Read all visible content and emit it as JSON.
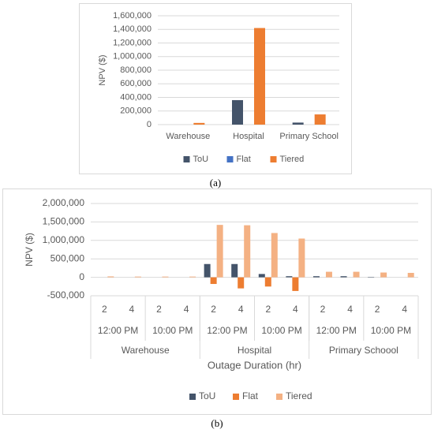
{
  "chart_data": [
    {
      "type": "bar",
      "label": "(a)",
      "y_label": "NPV ($)",
      "categories": [
        "Warehouse",
        "Hospital",
        "Primary School"
      ],
      "series": [
        {
          "name": "ToU",
          "color": "#44546a",
          "values": [
            0,
            360000,
            30000
          ]
        },
        {
          "name": "Flat",
          "color": "#4472c4",
          "values": [
            0,
            0,
            0
          ]
        },
        {
          "name": "Tiered",
          "color": "#ed7d31",
          "values": [
            25000,
            1420000,
            150000
          ]
        }
      ],
      "ylim": [
        0,
        1600000
      ],
      "yticks": [
        0,
        {
          "value": 200000,
          "label": "200,000"
        },
        {
          "value": 400000,
          "label": "400,000"
        },
        {
          "value": 600000,
          "label": "600,000"
        },
        {
          "value": 800000,
          "label": "800,000"
        },
        {
          "value": 1000000,
          "label": "1,000,000"
        },
        {
          "value": 1200000,
          "label": "1,200,000"
        },
        {
          "value": 1400000,
          "label": "1,400,000"
        },
        {
          "value": 1600000,
          "label": "1,600,000"
        }
      ],
      "grid": true,
      "legend": "bottom"
    },
    {
      "type": "bar",
      "label": "(b)",
      "y_label": "NPV ($)",
      "x_label": "Outage Duration (hr)",
      "categories": [
        "2",
        "4",
        "2",
        "4",
        "2",
        "4",
        "2",
        "4",
        "2",
        "4",
        "2",
        "4"
      ],
      "times": [
        "12:00 PM",
        "10:00 PM",
        "12:00 PM",
        "10:00 PM",
        "12:00 PM",
        "10:00 PM"
      ],
      "buildings": [
        "Warehouse",
        "Hospital",
        "Primary Schoool"
      ],
      "series": [
        {
          "name": "ToU",
          "color": "#44546a",
          "values": [
            0,
            0,
            0,
            0,
            360000,
            360000,
            90000,
            30000,
            30000,
            30000,
            10000,
            0
          ]
        },
        {
          "name": "Flat",
          "color": "#ed7d31",
          "values": [
            0,
            0,
            0,
            0,
            -180000,
            -300000,
            -250000,
            -370000,
            0,
            0,
            0,
            0
          ]
        },
        {
          "name": "Tiered",
          "color": "#f4b183",
          "values": [
            25000,
            20000,
            20000,
            20000,
            1420000,
            1410000,
            1200000,
            1050000,
            150000,
            150000,
            130000,
            120000
          ]
        }
      ],
      "ylim": [
        -500000,
        2000000
      ],
      "yticks": [
        {
          "value": -500000,
          "label": "-500,000"
        },
        0,
        {
          "value": 500000,
          "label": "500,000"
        },
        {
          "value": 1000000,
          "label": "1,000,000"
        },
        {
          "value": 1500000,
          "label": "1,500,000"
        },
        {
          "value": 2000000,
          "label": "2,000,000"
        }
      ],
      "grid": true,
      "legend": "bottom"
    }
  ]
}
